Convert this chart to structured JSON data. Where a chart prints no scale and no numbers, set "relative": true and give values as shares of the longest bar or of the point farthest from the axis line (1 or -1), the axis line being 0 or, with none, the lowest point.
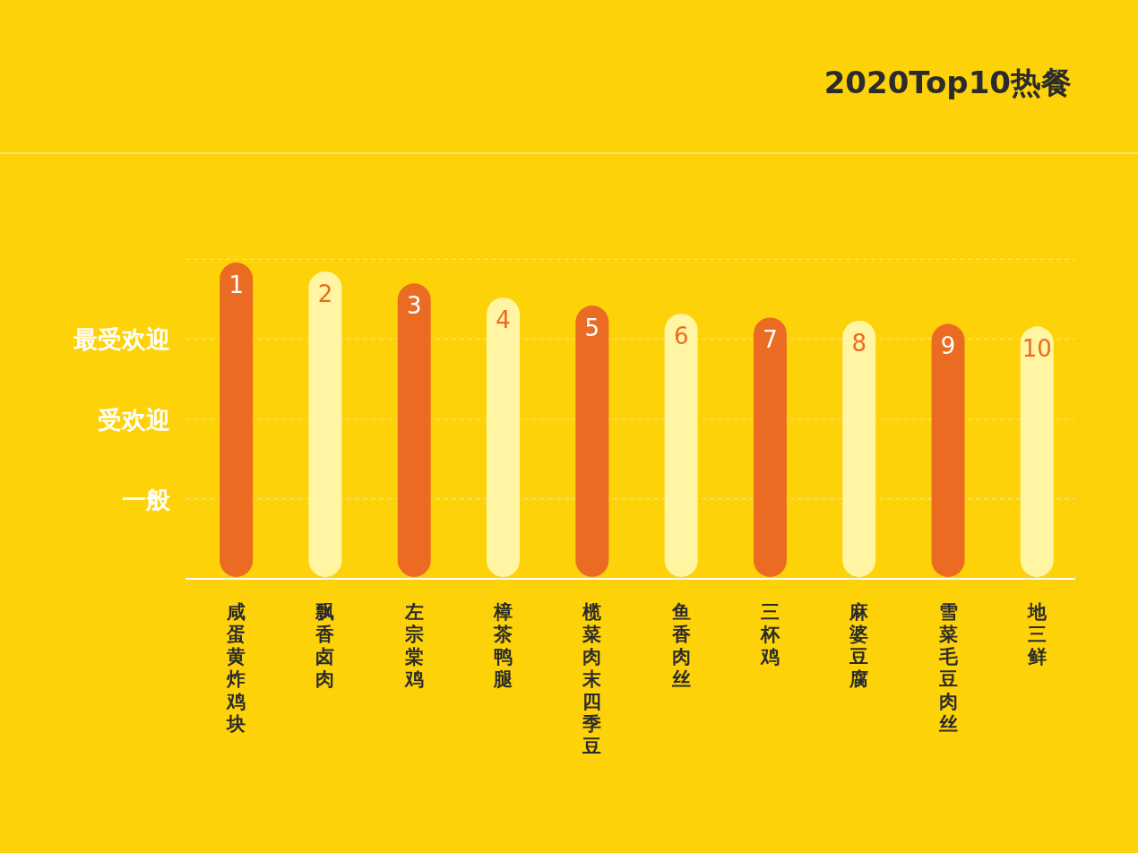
{
  "chart_data": {
    "type": "bar",
    "title": "2020Top10热餐",
    "relative": true,
    "categories": [
      "咸蛋黄炸鸡块",
      "飘香卤肉",
      "左宗棠鸡",
      "樟茶鸭腿",
      "榄菜肉末四季豆",
      "鱼香肉丝",
      "三杯鸡",
      "麻婆豆腐",
      "雪菜毛豆肉丝",
      "地三鲜"
    ],
    "values": [
      1,
      0.972,
      0.934,
      0.889,
      0.864,
      0.838,
      0.826,
      0.816,
      0.806,
      0.798
    ],
    "colors": [
      "#eb6b22",
      "#fff5a3",
      "#eb6b22",
      "#fff5a3",
      "#eb6b22",
      "#fff5a3",
      "#eb6b22",
      "#fff5a3",
      "#eb6b22",
      "#fff5a3"
    ],
    "annotations": [
      {
        "text": "1",
        "x": "咸蛋黄炸鸡块",
        "y": 1
      },
      {
        "text": "2",
        "x": "飘香卤肉",
        "y": 0.972
      },
      {
        "text": "3",
        "x": "左宗棠鸡",
        "y": 0.934
      },
      {
        "text": "4",
        "x": "樟茶鸭腿",
        "y": 0.889
      },
      {
        "text": "5",
        "x": "榄菜肉末四季豆",
        "y": 0.864
      },
      {
        "text": "6",
        "x": "鱼香肉丝",
        "y": 0.838
      },
      {
        "text": "7",
        "x": "三杯鸡",
        "y": 0.826
      },
      {
        "text": "8",
        "x": "麻婆豆腐",
        "y": 0.816
      },
      {
        "text": "9",
        "x": "雪菜毛豆肉丝",
        "y": 0.806
      },
      {
        "text": "10",
        "x": "地三鲜",
        "y": 0.798
      }
    ],
    "ref_lines": [
      {
        "axis": "y",
        "value": 0.253,
        "label": "一般",
        "color": "#f7e27c",
        "line_style": "dashed"
      },
      {
        "axis": "y",
        "value": 0.505,
        "label": "受欢迎",
        "color": "#f7e27c",
        "line_style": "dashed"
      },
      {
        "axis": "y",
        "value": 0.758,
        "label": "最受欢迎",
        "color": "#f7e27c",
        "line_style": "dashed"
      },
      {
        "axis": "y",
        "value": 1.01,
        "color": "#f7e27c",
        "line_style": "dashed"
      }
    ]
  }
}
